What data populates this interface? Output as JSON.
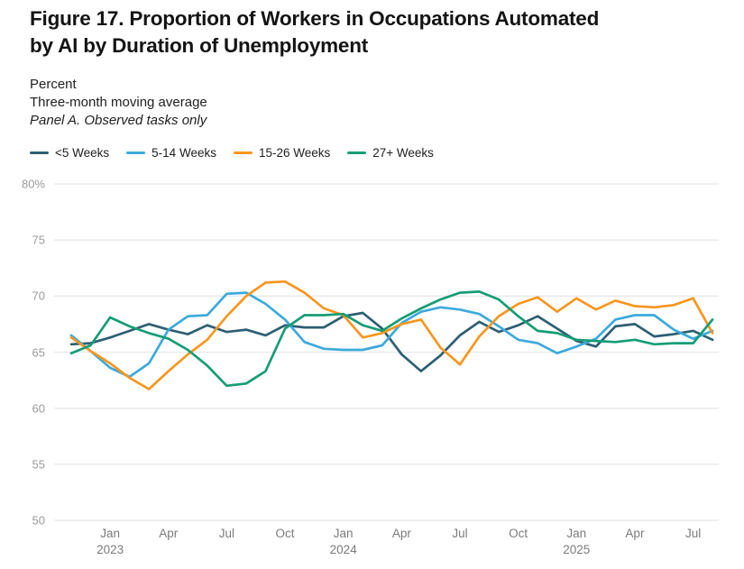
{
  "title_lines": [
    "Figure 17. Proportion of Workers in Occupations Automated",
    "by AI by Duration of Unemployment"
  ],
  "subtitles": {
    "units": "Percent",
    "smoothing": "Three-month moving average",
    "panel": "Panel A. Observed tasks only"
  },
  "legend": [
    {
      "label": "<5 Weeks",
      "color": "#2d5f73"
    },
    {
      "label": "5-14 Weeks",
      "color": "#3caadc"
    },
    {
      "label": "15-26 Weeks",
      "color": "#f8961e"
    },
    {
      "label": "27+ Weeks",
      "color": "#169d76"
    }
  ],
  "chart_data": {
    "type": "line",
    "title": "Proportion of Workers in Occupations Automated by AI by Duration of Unemployment — Panel A. Observed tasks only",
    "ylabel": "Percent (three-month moving average)",
    "ylim": [
      50,
      80
    ],
    "grid": "horizontal",
    "legend_position": "top-left",
    "yticks": [
      {
        "value": 80,
        "label": "80%"
      },
      {
        "value": 75,
        "label": "75"
      },
      {
        "value": 70,
        "label": "70"
      },
      {
        "value": 65,
        "label": "65"
      },
      {
        "value": 60,
        "label": "60"
      },
      {
        "value": 55,
        "label": "55"
      },
      {
        "value": 50,
        "label": "50"
      }
    ],
    "x": [
      "Nov 2022",
      "Dec 2022",
      "Jan 2023",
      "Feb 2023",
      "Mar 2023",
      "Apr 2023",
      "May 2023",
      "Jun 2023",
      "Jul 2023",
      "Aug 2023",
      "Sep 2023",
      "Oct 2023",
      "Nov 2023",
      "Dec 2023",
      "Jan 2024",
      "Feb 2024",
      "Mar 2024",
      "Apr 2024",
      "May 2024",
      "Jun 2024",
      "Jul 2024",
      "Aug 2024",
      "Sep 2024",
      "Oct 2024",
      "Nov 2024",
      "Dec 2024",
      "Jan 2025",
      "Feb 2025",
      "Mar 2025",
      "Apr 2025",
      "May 2025",
      "Jun 2025",
      "Jul 2025",
      "Aug 2025"
    ],
    "xticks": [
      {
        "month_index": 2,
        "label": "Jan",
        "year": "2023"
      },
      {
        "month_index": 5,
        "label": "Apr"
      },
      {
        "month_index": 8,
        "label": "Jul"
      },
      {
        "month_index": 11,
        "label": "Oct"
      },
      {
        "month_index": 14,
        "label": "Jan",
        "year": "2024"
      },
      {
        "month_index": 17,
        "label": "Apr"
      },
      {
        "month_index": 20,
        "label": "Jul"
      },
      {
        "month_index": 23,
        "label": "Oct"
      },
      {
        "month_index": 26,
        "label": "Jan",
        "year": "2025"
      },
      {
        "month_index": 29,
        "label": "Apr"
      },
      {
        "month_index": 32,
        "label": "Jul"
      }
    ],
    "series": [
      {
        "name": "<5 Weeks",
        "color": "#2d5f73",
        "values": [
          65.7,
          65.8,
          66.3,
          66.9,
          67.5,
          67.0,
          66.6,
          67.4,
          66.8,
          67.0,
          66.5,
          67.4,
          67.2,
          67.2,
          68.2,
          68.5,
          67.1,
          64.8,
          63.3,
          64.7,
          66.5,
          67.7,
          66.8,
          67.4,
          68.2,
          67.1,
          66.0,
          65.5,
          67.3,
          67.5,
          66.4,
          66.6,
          66.9,
          66.1
        ]
      },
      {
        "name": "5-14 Weeks",
        "color": "#3caadc",
        "values": [
          66.5,
          65.1,
          63.6,
          62.8,
          64.0,
          67.0,
          68.2,
          68.3,
          70.2,
          70.3,
          69.3,
          67.9,
          65.9,
          65.3,
          65.2,
          65.2,
          65.6,
          67.6,
          68.6,
          69.0,
          68.8,
          68.4,
          67.3,
          66.1,
          65.8,
          64.9,
          65.5,
          66.2,
          67.9,
          68.3,
          68.3,
          67.0,
          66.2,
          66.9
        ]
      },
      {
        "name": "15-26 Weeks",
        "color": "#f8961e",
        "values": [
          66.3,
          65.1,
          64.0,
          62.7,
          61.7,
          63.3,
          64.8,
          66.1,
          68.2,
          70.0,
          71.2,
          71.3,
          70.3,
          68.9,
          68.3,
          66.3,
          66.7,
          67.5,
          67.9,
          65.4,
          63.9,
          66.4,
          68.2,
          69.3,
          69.9,
          68.6,
          69.8,
          68.8,
          69.6,
          69.1,
          69.0,
          69.2,
          69.8,
          66.7
        ]
      },
      {
        "name": "27+ Weeks",
        "color": "#169d76",
        "values": [
          64.9,
          65.6,
          68.1,
          67.3,
          66.7,
          66.2,
          65.2,
          63.8,
          62.0,
          62.2,
          63.3,
          67.1,
          68.3,
          68.3,
          68.4,
          67.4,
          66.9,
          68.0,
          68.9,
          69.7,
          70.3,
          70.4,
          69.7,
          68.2,
          66.9,
          66.7,
          66.1,
          66.0,
          65.9,
          66.1,
          65.7,
          65.8,
          65.8,
          67.9
        ]
      }
    ]
  },
  "colors": {
    "background": "#ffffff",
    "title_text": "#141414",
    "subtitle_text": "#212121",
    "gridline": "#e8e8e8",
    "ytick_text": "#9b9b9b",
    "xtick_text": "#7b7b7b"
  }
}
